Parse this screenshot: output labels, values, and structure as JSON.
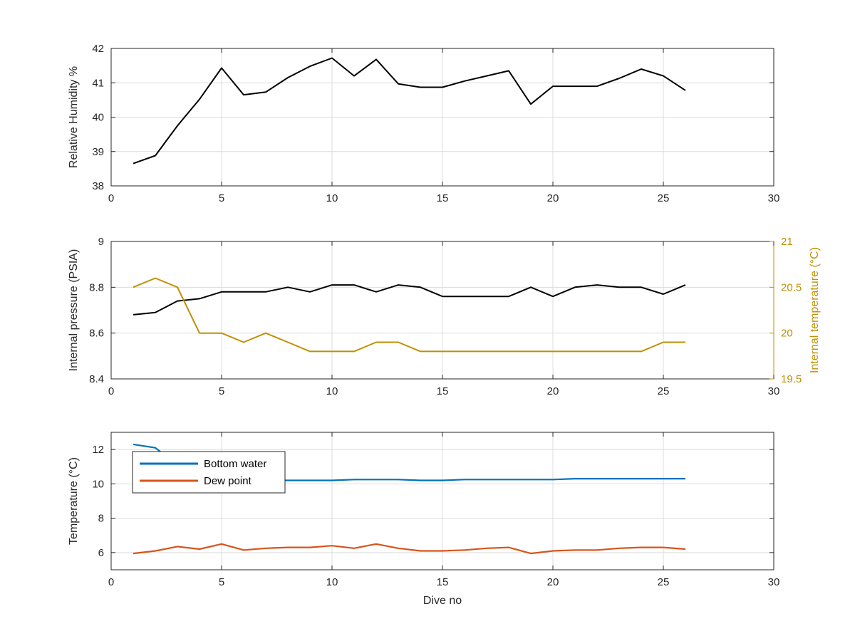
{
  "chart_data": [
    {
      "type": "line",
      "title": "",
      "xlabel": "",
      "ylabel": "Relative Humidity %",
      "xlim": [
        0,
        30
      ],
      "ylim": [
        38,
        42
      ],
      "xticks": [
        0,
        5,
        10,
        15,
        20,
        25,
        30
      ],
      "yticks": [
        38,
        39,
        40,
        41,
        42
      ],
      "grid": true,
      "series": [
        {
          "color": "#000000",
          "x": [
            1,
            2,
            3,
            4,
            5,
            6,
            7,
            8,
            9,
            10,
            11,
            12,
            13,
            14,
            15,
            16,
            17,
            18,
            19,
            20,
            21,
            22,
            23,
            24,
            25,
            26
          ],
          "values": [
            38.65,
            38.88,
            39.75,
            40.52,
            41.43,
            40.65,
            40.73,
            41.15,
            41.48,
            41.72,
            41.2,
            41.68,
            40.97,
            40.87,
            40.87,
            41.05,
            41.2,
            41.35,
            40.38,
            40.9,
            40.9,
            40.9,
            41.13,
            41.4,
            41.2,
            40.78
          ]
        }
      ]
    },
    {
      "type": "line",
      "title": "",
      "xlabel": "",
      "ylabel": "Internal pressure (PSIA)",
      "y2label": "Internal temperature (°C)",
      "xlim": [
        0,
        30
      ],
      "ylim": [
        8.4,
        9
      ],
      "y2lim": [
        19.5,
        21
      ],
      "xticks": [
        0,
        5,
        10,
        15,
        20,
        25,
        30
      ],
      "yticks": [
        8.4,
        8.6,
        8.8,
        9
      ],
      "y2ticks": [
        19.5,
        20,
        20.5,
        21
      ],
      "grid": true,
      "y2color": "#c09000",
      "series": [
        {
          "axis": "left",
          "color": "#000000",
          "x": [
            1,
            2,
            3,
            4,
            5,
            6,
            7,
            8,
            9,
            10,
            11,
            12,
            13,
            14,
            15,
            16,
            17,
            18,
            19,
            20,
            21,
            22,
            23,
            24,
            25,
            26
          ],
          "values": [
            8.68,
            8.69,
            8.74,
            8.75,
            8.78,
            8.78,
            8.78,
            8.8,
            8.78,
            8.81,
            8.81,
            8.78,
            8.81,
            8.8,
            8.76,
            8.76,
            8.76,
            8.76,
            8.8,
            8.76,
            8.8,
            8.81,
            8.8,
            8.8,
            8.77,
            8.81
          ]
        },
        {
          "axis": "right",
          "color": "#c09000",
          "x": [
            1,
            2,
            3,
            4,
            5,
            6,
            7,
            8,
            9,
            10,
            11,
            12,
            13,
            14,
            15,
            16,
            17,
            18,
            19,
            20,
            21,
            22,
            23,
            24,
            25,
            26
          ],
          "values": [
            20.5,
            20.6,
            20.5,
            20.0,
            20.0,
            19.9,
            20.0,
            19.9,
            19.8,
            19.8,
            19.8,
            19.9,
            19.9,
            19.8,
            19.8,
            19.8,
            19.8,
            19.8,
            19.8,
            19.8,
            19.8,
            19.8,
            19.8,
            19.8,
            19.9,
            19.9
          ]
        }
      ]
    },
    {
      "type": "line",
      "title": "",
      "xlabel": "Dive no",
      "ylabel": "Temperature (°C)",
      "xlim": [
        0,
        30
      ],
      "ylim": [
        5,
        13
      ],
      "xticks": [
        0,
        5,
        10,
        15,
        20,
        25,
        30
      ],
      "yticks": [
        6,
        8,
        10,
        12
      ],
      "grid": true,
      "legend": "top-left",
      "series": [
        {
          "name": "Bottom water",
          "color": "#0072bd",
          "x": [
            1,
            2,
            3,
            4,
            5,
            6,
            7,
            8,
            9,
            10,
            11,
            12,
            13,
            14,
            15,
            16,
            17,
            18,
            19,
            20,
            21,
            22,
            23,
            24,
            25,
            26
          ],
          "values": [
            12.3,
            12.1,
            11.1,
            10.7,
            10.4,
            10.25,
            10.2,
            10.2,
            10.2,
            10.2,
            10.25,
            10.25,
            10.25,
            10.2,
            10.2,
            10.25,
            10.25,
            10.25,
            10.25,
            10.25,
            10.3,
            10.3,
            10.3,
            10.3,
            10.3,
            10.3
          ]
        },
        {
          "name": "Dew point",
          "color": "#d95319",
          "x": [
            1,
            2,
            3,
            4,
            5,
            6,
            7,
            8,
            9,
            10,
            11,
            12,
            13,
            14,
            15,
            16,
            17,
            18,
            19,
            20,
            21,
            22,
            23,
            24,
            25,
            26
          ],
          "values": [
            5.95,
            6.1,
            6.35,
            6.2,
            6.5,
            6.15,
            6.25,
            6.3,
            6.3,
            6.4,
            6.25,
            6.5,
            6.25,
            6.1,
            6.1,
            6.15,
            6.25,
            6.3,
            5.95,
            6.1,
            6.15,
            6.15,
            6.25,
            6.3,
            6.3,
            6.2
          ]
        }
      ]
    }
  ]
}
